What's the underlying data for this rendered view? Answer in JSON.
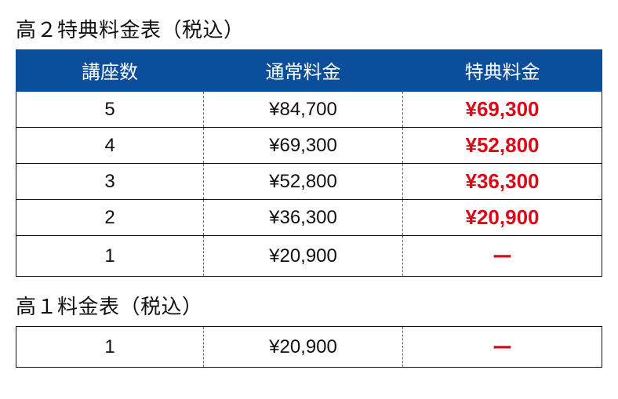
{
  "table1": {
    "title": "高２特典料金表（税込）",
    "headers": [
      "講座数",
      "通常料金",
      "特典料金"
    ],
    "rows": [
      {
        "courses": "5",
        "regular": "¥84,700",
        "special": "¥69,300"
      },
      {
        "courses": "4",
        "regular": "¥69,300",
        "special": "¥52,800"
      },
      {
        "courses": "3",
        "regular": "¥52,800",
        "special": "¥36,300"
      },
      {
        "courses": "2",
        "regular": "¥36,300",
        "special": "¥20,900"
      },
      {
        "courses": "1",
        "regular": "¥20,900",
        "special": "ー"
      }
    ]
  },
  "table2": {
    "title": "高１料金表（税込）",
    "rows": [
      {
        "courses": "1",
        "regular": "¥20,900",
        "special": "ー"
      }
    ]
  },
  "style": {
    "header_bg": "#0b4e9b",
    "header_text": "#ffffff",
    "body_text": "#111111",
    "special_color": "#d70c18",
    "border_color": "#111111",
    "dashed_border": "#666666",
    "font_size_title": 26,
    "font_size_header": 24,
    "font_size_cell": 24,
    "font_size_special": 26
  }
}
